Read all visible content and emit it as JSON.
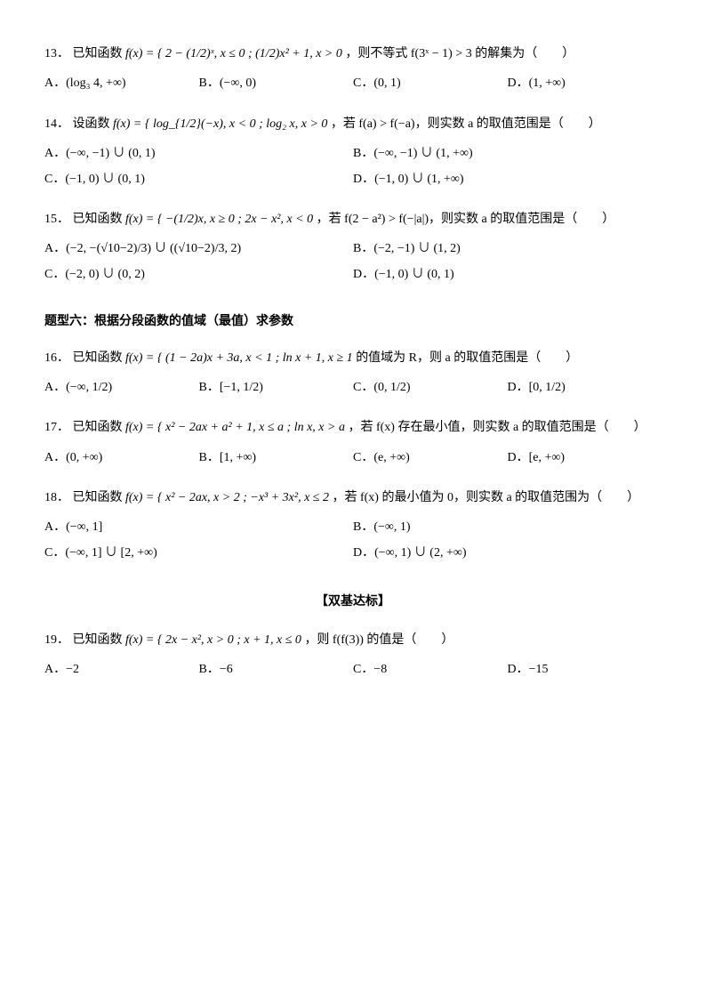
{
  "q13": {
    "num": "13．",
    "stem_pre": "已知函数 ",
    "stem_fn": "f(x) = {  2 − (1/2)ˣ, x ≤ 0 ;  (1/2)x² + 1, x > 0",
    "stem_post": "，则不等式 f(3ˣ − 1) > 3 的解集为（　　）",
    "A": "A．(log₃ 4, +∞)",
    "B": "B．(−∞, 0)",
    "C": "C．(0, 1)",
    "D": "D．(1, +∞)"
  },
  "q14": {
    "num": "14．",
    "stem_pre": "设函数 ",
    "stem_fn": "f(x) = {  log_{1/2}(−x), x < 0 ;  log₂ x, x > 0",
    "stem_post": "，若 f(a) > f(−a)，则实数 a 的取值范围是（　　）",
    "A": "A．(−∞, −1) ∪ (0, 1)",
    "B": "B．(−∞, −1) ∪ (1, +∞)",
    "C": "C．(−1, 0) ∪ (0, 1)",
    "D": "D．(−1, 0) ∪ (1, +∞)"
  },
  "q15": {
    "num": "15．",
    "stem_pre": "已知函数 ",
    "stem_fn": "f(x) = {  −(1/2)x, x ≥ 0 ;  2x − x², x < 0",
    "stem_post": "，若 f(2 − a²) > f(−|a|)，则实数 a 的取值范围是（　　）",
    "A": "A．(−2, −(√10−2)/3) ∪ ((√10−2)/3, 2)",
    "B": "B．(−2, −1) ∪ (1, 2)",
    "C": "C．(−2, 0) ∪ (0, 2)",
    "D": "D．(−1, 0) ∪ (0, 1)"
  },
  "section6": "题型六：根据分段函数的值域（最值）求参数",
  "q16": {
    "num": "16．",
    "stem_pre": "已知函数 ",
    "stem_fn": "f(x) = {  (1 − 2a)x + 3a, x < 1 ;  ln x + 1, x ≥ 1",
    "stem_post": " 的值域为 R，则 a 的取值范围是（　　）",
    "A": "A．(−∞, 1/2)",
    "B": "B．[−1, 1/2)",
    "C": "C．(0, 1/2)",
    "D": "D．[0, 1/2)"
  },
  "q17": {
    "num": "17．",
    "stem_pre": "已知函数 ",
    "stem_fn": "f(x) = {  x² − 2ax + a² + 1, x ≤ a ;  ln x, x > a",
    "stem_post": "，若 f(x) 存在最小值，则实数 a 的取值范围是（　　）",
    "A": "A．(0, +∞)",
    "B": "B．[1, +∞)",
    "C": "C．(e, +∞)",
    "D": "D．[e, +∞)"
  },
  "q18": {
    "num": "18．",
    "stem_pre": "已知函数 ",
    "stem_fn": "f(x) = {  x² − 2ax, x > 2 ;  −x³ + 3x², x ≤ 2",
    "stem_post": "，若 f(x) 的最小值为 0，则实数 a 的取值范围为（　　）",
    "A": "A．(−∞, 1]",
    "B": "B．(−∞, 1)",
    "C": "C．(−∞, 1] ∪ [2, +∞)",
    "D": "D．(−∞, 1) ∪ (2, +∞)"
  },
  "double_base": "【双基达标】",
  "q19": {
    "num": "19．",
    "stem_pre": "已知函数 ",
    "stem_fn": "f(x) = {  2x − x², x > 0 ;  x + 1, x ≤ 0",
    "stem_post": "，则 f(f(3)) 的值是（　　）",
    "A": "A．−2",
    "B": "B．−6",
    "C": "C．−8",
    "D": "D．−15"
  }
}
